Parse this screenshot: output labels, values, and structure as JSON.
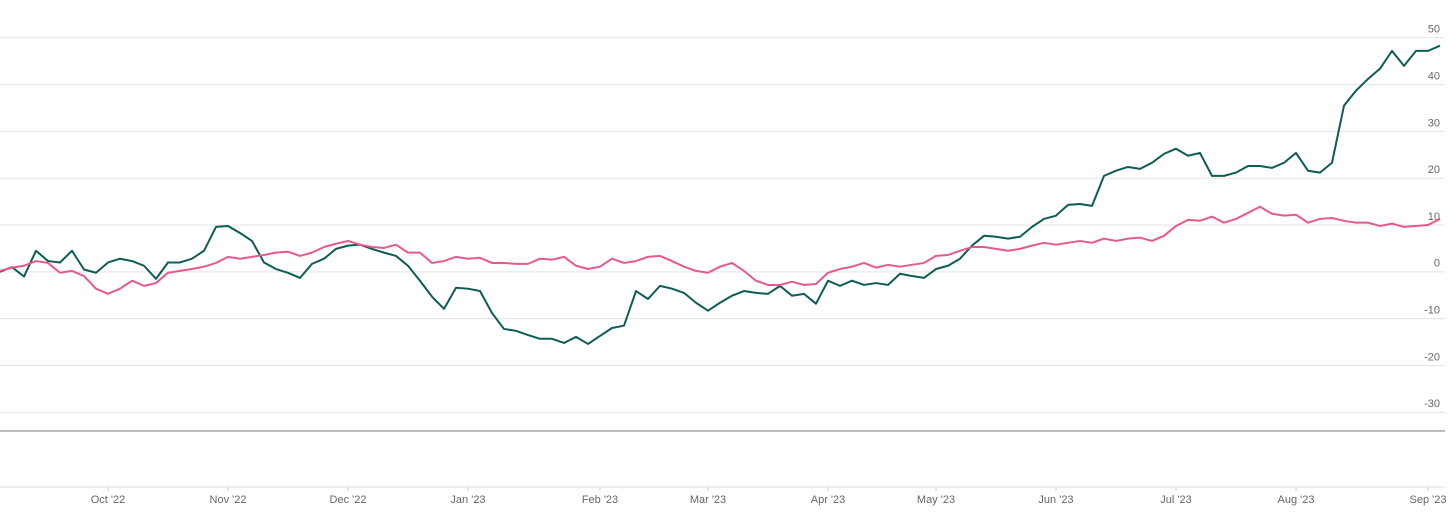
{
  "chart_data": {
    "type": "line",
    "categories": [
      null,
      null,
      null,
      null,
      null,
      null,
      null,
      null,
      null,
      "Oct '22",
      null,
      null,
      null,
      null,
      null,
      null,
      null,
      null,
      null,
      "Nov '22",
      null,
      null,
      null,
      null,
      null,
      null,
      null,
      null,
      null,
      "Dec '22",
      null,
      null,
      null,
      null,
      null,
      null,
      null,
      null,
      null,
      "Jan '23",
      null,
      null,
      null,
      null,
      null,
      null,
      null,
      null,
      null,
      null,
      "Feb '23",
      null,
      null,
      null,
      null,
      null,
      null,
      null,
      null,
      "Mar '23",
      null,
      null,
      null,
      null,
      null,
      null,
      null,
      null,
      null,
      "Apr '23",
      null,
      null,
      null,
      null,
      null,
      null,
      null,
      null,
      "May '23",
      null,
      null,
      null,
      null,
      null,
      null,
      null,
      null,
      null,
      "Jun '23",
      null,
      null,
      null,
      null,
      null,
      null,
      null,
      null,
      null,
      "Jul '23",
      null,
      null,
      null,
      null,
      null,
      null,
      null,
      null,
      null,
      "Aug '23",
      null,
      null,
      null,
      null,
      null,
      null,
      null,
      null,
      null,
      null,
      "Sep '23",
      null
    ],
    "series": [
      {
        "color": "#0d5c57",
        "values": [
          0,
          1,
          -1,
          4.5,
          2.3,
          2,
          4.5,
          0.5,
          -0.2,
          2,
          2.8,
          2.3,
          1.3,
          -1.5,
          2,
          2,
          2.8,
          4.5,
          9.6,
          9.8,
          8.3,
          6.6,
          2,
          0.6,
          -0.2,
          -1.3,
          1.7,
          2.8,
          4.9,
          5.6,
          5.8,
          4.9,
          4.1,
          3.4,
          1.3,
          -1.9,
          -5.3,
          -7.9,
          -3.4,
          -3.6,
          -4.1,
          -8.8,
          -12.2,
          -12.6,
          -13.5,
          -14.3,
          -14.3,
          -15.2,
          -13.9,
          -15.4,
          -13.7,
          -12,
          -11.5,
          -4.1,
          -5.8,
          -3,
          -3.6,
          -4.5,
          -6.6,
          -8.3,
          -6.6,
          -5.1,
          -4.1,
          -4.5,
          -4.7,
          -3,
          -5.1,
          -4.7,
          -6.8,
          -1.9,
          -3,
          -1.9,
          -2.8,
          -2.4,
          -2.8,
          -0.4,
          -0.9,
          -1.3,
          0.6,
          1.3,
          2.8,
          5.6,
          7.7,
          7.5,
          7.1,
          7.5,
          9.6,
          11.3,
          12,
          14.3,
          14.5,
          14.1,
          20.5,
          21.6,
          22.4,
          22,
          23.3,
          25.2,
          26.3,
          24.8,
          25.4,
          20.5,
          20.5,
          21.2,
          22.6,
          22.6,
          22.2,
          23.3,
          25.4,
          21.6,
          21.2,
          23.3,
          35.5,
          38.7,
          41.2,
          43.4,
          47.2,
          44,
          47.2,
          47.2,
          48.3
        ]
      },
      {
        "color": "#e8588f",
        "values": [
          0.2,
          0.9,
          1.3,
          2.3,
          1.9,
          -0.2,
          0.2,
          -0.9,
          -3.6,
          -4.7,
          -3.6,
          -1.9,
          -3,
          -2.4,
          -0.2,
          0.2,
          0.6,
          1.1,
          1.9,
          3.2,
          2.8,
          3.2,
          3.6,
          4.1,
          4.3,
          3.4,
          4.1,
          5.3,
          6,
          6.6,
          5.8,
          5.3,
          5.1,
          5.8,
          4.1,
          4.1,
          1.9,
          2.3,
          3.2,
          2.8,
          3,
          1.9,
          1.9,
          1.7,
          1.7,
          2.8,
          2.6,
          3.2,
          1.3,
          0.6,
          1.1,
          2.8,
          1.9,
          2.3,
          3.2,
          3.4,
          2.3,
          1.1,
          0.2,
          -0.2,
          1.1,
          1.9,
          0.2,
          -1.9,
          -2.8,
          -2.8,
          -2.1,
          -2.8,
          -2.6,
          -0.2,
          0.6,
          1.1,
          1.9,
          0.9,
          1.5,
          1.1,
          1.5,
          1.9,
          3.4,
          3.6,
          4.5,
          5.3,
          5.3,
          4.9,
          4.5,
          4.9,
          5.6,
          6.2,
          5.8,
          6.2,
          6.6,
          6.2,
          7.1,
          6.6,
          7.1,
          7.3,
          6.6,
          7.7,
          9.8,
          11.1,
          10.9,
          11.8,
          10.5,
          11.3,
          12.6,
          13.9,
          12.4,
          12,
          12.2,
          10.5,
          11.3,
          11.5,
          10.9,
          10.5,
          10.5,
          9.8,
          10.3,
          9.6,
          9.8,
          10,
          11.3
        ]
      }
    ],
    "ylim": [
      -34,
      57
    ],
    "yticks": [
      -30,
      -20,
      -10,
      0,
      10,
      20,
      30,
      40,
      50
    ],
    "grid": true
  }
}
